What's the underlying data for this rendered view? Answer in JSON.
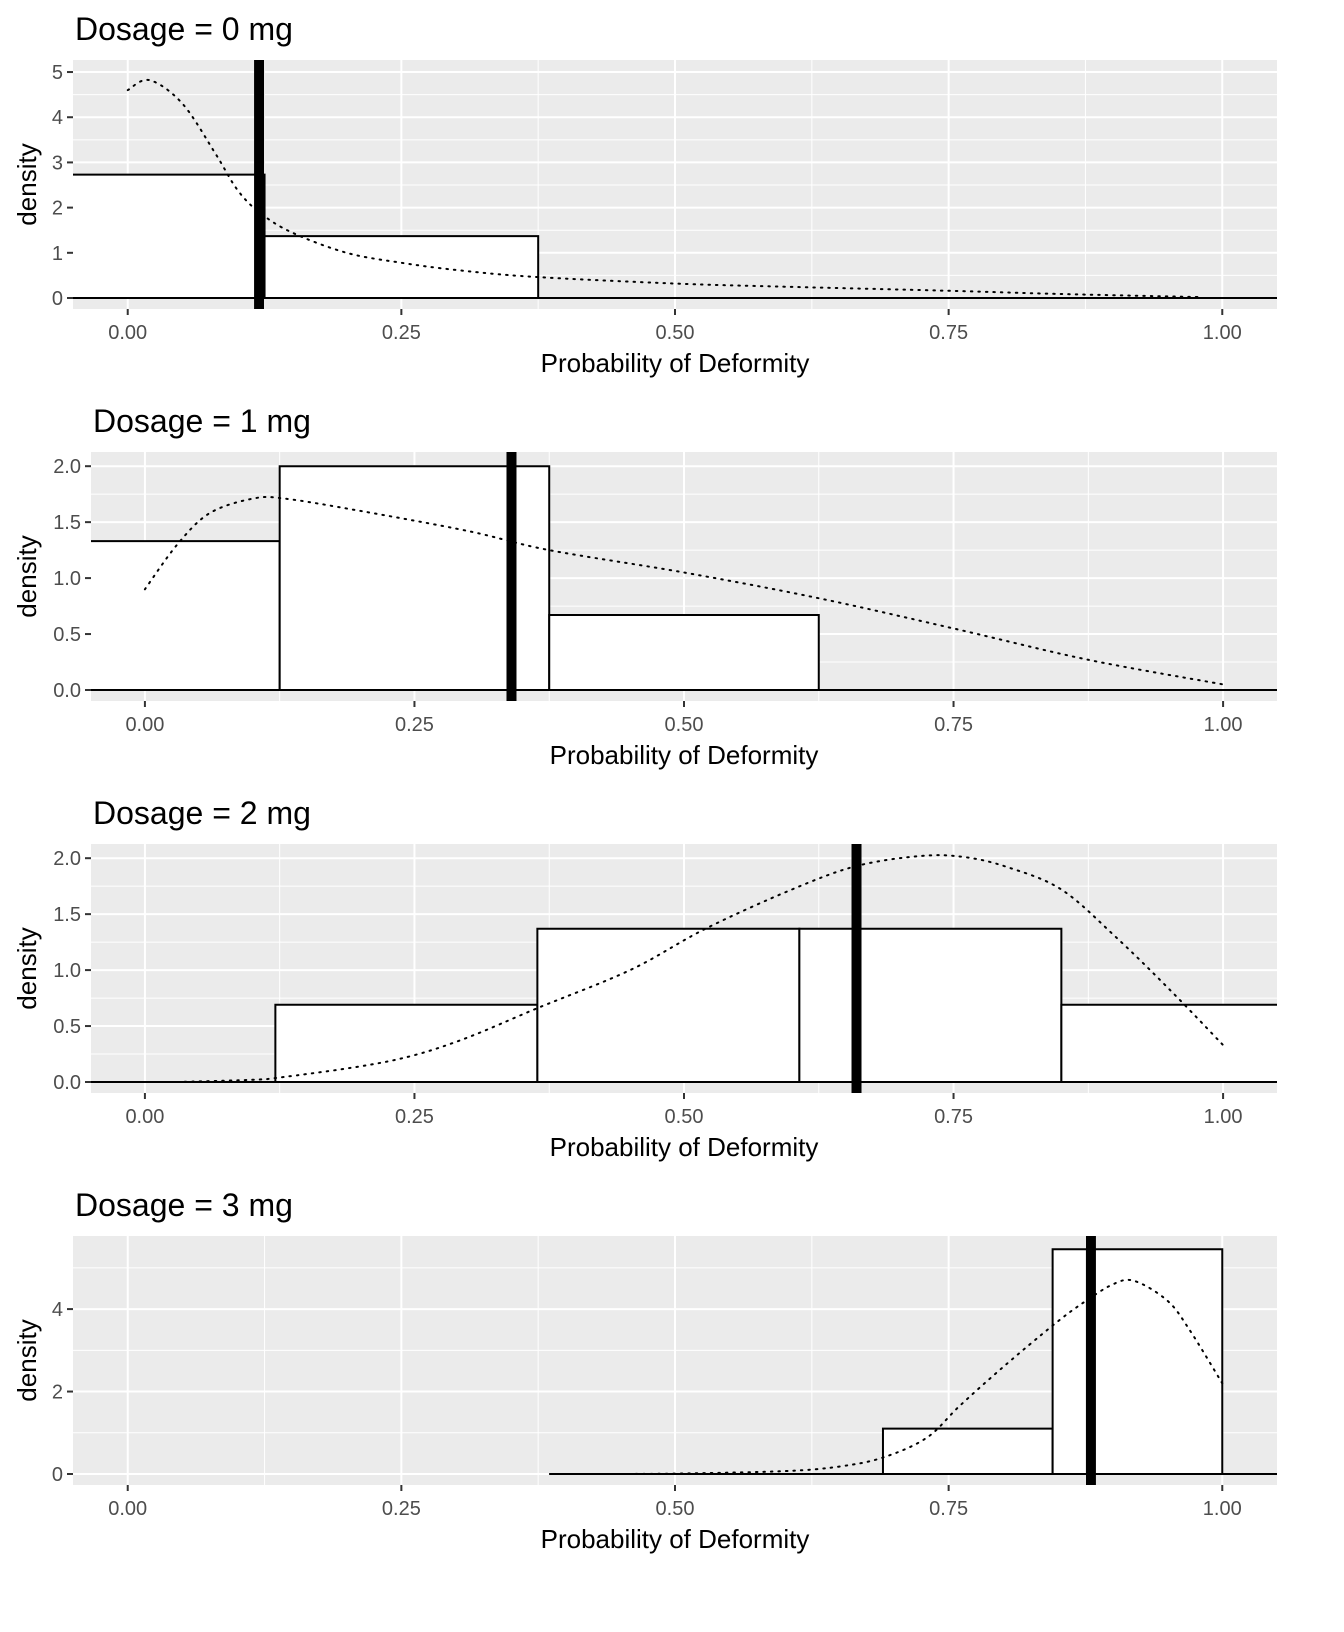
{
  "chart_data": [
    {
      "type": "bar",
      "title": "Dosage = 0 mg",
      "xlabel": "Probability of Deformity",
      "ylabel": "density",
      "xlim": [
        -0.05,
        1.05
      ],
      "ylim": [
        0,
        5.2
      ],
      "x_ticks": [
        0,
        0.25,
        0.5,
        0.75,
        1.0
      ],
      "x_tick_labels": [
        "0.00",
        "0.25",
        "0.50",
        "0.75",
        "1.00"
      ],
      "y_ticks": [
        0,
        1,
        2,
        3,
        4,
        5
      ],
      "y_tick_labels": [
        "0",
        "1",
        "2",
        "3",
        "4",
        "5"
      ],
      "grid": true,
      "histogram": [
        {
          "x0": -0.125,
          "x1": 0.125,
          "density": 2.73
        },
        {
          "x0": 0.125,
          "x1": 0.375,
          "density": 1.37
        }
      ],
      "baseline_range": [
        -0.05,
        1.05
      ],
      "vertical_line_x": 0.12,
      "density_curve": [
        [
          0,
          4.6
        ],
        [
          0.02,
          4.82
        ],
        [
          0.05,
          4.3
        ],
        [
          0.08,
          3.2
        ],
        [
          0.1,
          2.4
        ],
        [
          0.12,
          1.9
        ],
        [
          0.15,
          1.45
        ],
        [
          0.2,
          1.0
        ],
        [
          0.25,
          0.78
        ],
        [
          0.3,
          0.62
        ],
        [
          0.37,
          0.47
        ],
        [
          0.5,
          0.32
        ],
        [
          0.6,
          0.25
        ],
        [
          0.75,
          0.16
        ],
        [
          0.85,
          0.09
        ],
        [
          0.98,
          0.02
        ]
      ]
    },
    {
      "type": "bar",
      "title": "Dosage = 1 mg",
      "xlabel": "Probability of Deformity",
      "ylabel": "density",
      "xlim": [
        -0.05,
        1.05
      ],
      "ylim": [
        0,
        2.1
      ],
      "x_ticks": [
        0,
        0.25,
        0.5,
        0.75,
        1.0
      ],
      "x_tick_labels": [
        "0.00",
        "0.25",
        "0.50",
        "0.75",
        "1.00"
      ],
      "y_ticks": [
        0,
        0.5,
        1.0,
        1.5,
        2.0
      ],
      "y_tick_labels": [
        "0.0",
        "0.5",
        "1.0",
        "1.5",
        "2.0"
      ],
      "grid": true,
      "histogram": [
        {
          "x0": -0.125,
          "x1": 0.125,
          "density": 1.33
        },
        {
          "x0": 0.125,
          "x1": 0.375,
          "density": 2.0
        },
        {
          "x0": 0.375,
          "x1": 0.625,
          "density": 0.67
        }
      ],
      "baseline_range": [
        -0.05,
        1.05
      ],
      "vertical_line_x": 0.34,
      "density_curve": [
        [
          0,
          0.9
        ],
        [
          0.03,
          1.3
        ],
        [
          0.06,
          1.58
        ],
        [
          0.1,
          1.71
        ],
        [
          0.13,
          1.71
        ],
        [
          0.2,
          1.6
        ],
        [
          0.3,
          1.42
        ],
        [
          0.375,
          1.25
        ],
        [
          0.5,
          1.05
        ],
        [
          0.625,
          0.82
        ],
        [
          0.75,
          0.55
        ],
        [
          0.875,
          0.27
        ],
        [
          1.0,
          0.05
        ]
      ]
    },
    {
      "type": "bar",
      "title": "Dosage = 2 mg",
      "xlabel": "Probability of Deformity",
      "ylabel": "density",
      "xlim": [
        -0.05,
        1.05
      ],
      "ylim": [
        0,
        2.1
      ],
      "x_ticks": [
        0,
        0.25,
        0.5,
        0.75,
        1.0
      ],
      "x_tick_labels": [
        "0.00",
        "0.25",
        "0.50",
        "0.75",
        "1.00"
      ],
      "y_ticks": [
        0,
        0.5,
        1.0,
        1.5,
        2.0
      ],
      "y_tick_labels": [
        "0.0",
        "0.5",
        "1.0",
        "1.5",
        "2.0"
      ],
      "grid": true,
      "histogram": [
        {
          "x0": 0.121,
          "x1": 0.364,
          "density": 0.69
        },
        {
          "x0": 0.364,
          "x1": 0.607,
          "density": 1.37
        },
        {
          "x0": 0.607,
          "x1": 0.85,
          "density": 1.37
        },
        {
          "x0": 0.85,
          "x1": 1.093,
          "density": 0.69
        }
      ],
      "baseline_range": [
        -0.05,
        1.05
      ],
      "vertical_line_x": 0.66,
      "density_curve": [
        [
          0.03,
          0.0
        ],
        [
          0.1,
          0.02
        ],
        [
          0.125,
          0.04
        ],
        [
          0.2,
          0.14
        ],
        [
          0.25,
          0.24
        ],
        [
          0.3,
          0.4
        ],
        [
          0.364,
          0.66
        ],
        [
          0.45,
          1.0
        ],
        [
          0.52,
          1.37
        ],
        [
          0.6,
          1.72
        ],
        [
          0.66,
          1.93
        ],
        [
          0.72,
          2.02
        ],
        [
          0.76,
          2.01
        ],
        [
          0.8,
          1.92
        ],
        [
          0.85,
          1.72
        ],
        [
          0.9,
          1.3
        ],
        [
          0.95,
          0.83
        ],
        [
          1.0,
          0.33
        ]
      ]
    },
    {
      "type": "bar",
      "title": "Dosage = 3 mg",
      "xlabel": "Probability of Deformity",
      "ylabel": "density",
      "xlim": [
        -0.05,
        1.05
      ],
      "ylim": [
        0,
        5.7
      ],
      "x_ticks": [
        0,
        0.25,
        0.5,
        0.75,
        1.0
      ],
      "x_tick_labels": [
        "0.00",
        "0.25",
        "0.50",
        "0.75",
        "1.00"
      ],
      "y_ticks": [
        0,
        2,
        4
      ],
      "y_tick_labels": [
        "0",
        "2",
        "4"
      ],
      "grid": true,
      "histogram": [
        {
          "x0": 0.69,
          "x1": 0.845,
          "density": 1.1
        },
        {
          "x0": 0.845,
          "x1": 1.0,
          "density": 5.45
        }
      ],
      "baseline_range": [
        0.385,
        1.05
      ],
      "vertical_line_x": 0.88,
      "density_curve": [
        [
          0.43,
          0.0
        ],
        [
          0.5,
          0.01
        ],
        [
          0.6,
          0.07
        ],
        [
          0.65,
          0.18
        ],
        [
          0.69,
          0.4
        ],
        [
          0.73,
          0.88
        ],
        [
          0.76,
          1.65
        ],
        [
          0.8,
          2.6
        ],
        [
          0.845,
          3.6
        ],
        [
          0.87,
          4.1
        ],
        [
          0.9,
          4.6
        ],
        [
          0.92,
          4.68
        ],
        [
          0.95,
          4.2
        ],
        [
          0.97,
          3.5
        ],
        [
          1.0,
          2.2
        ]
      ]
    }
  ]
}
